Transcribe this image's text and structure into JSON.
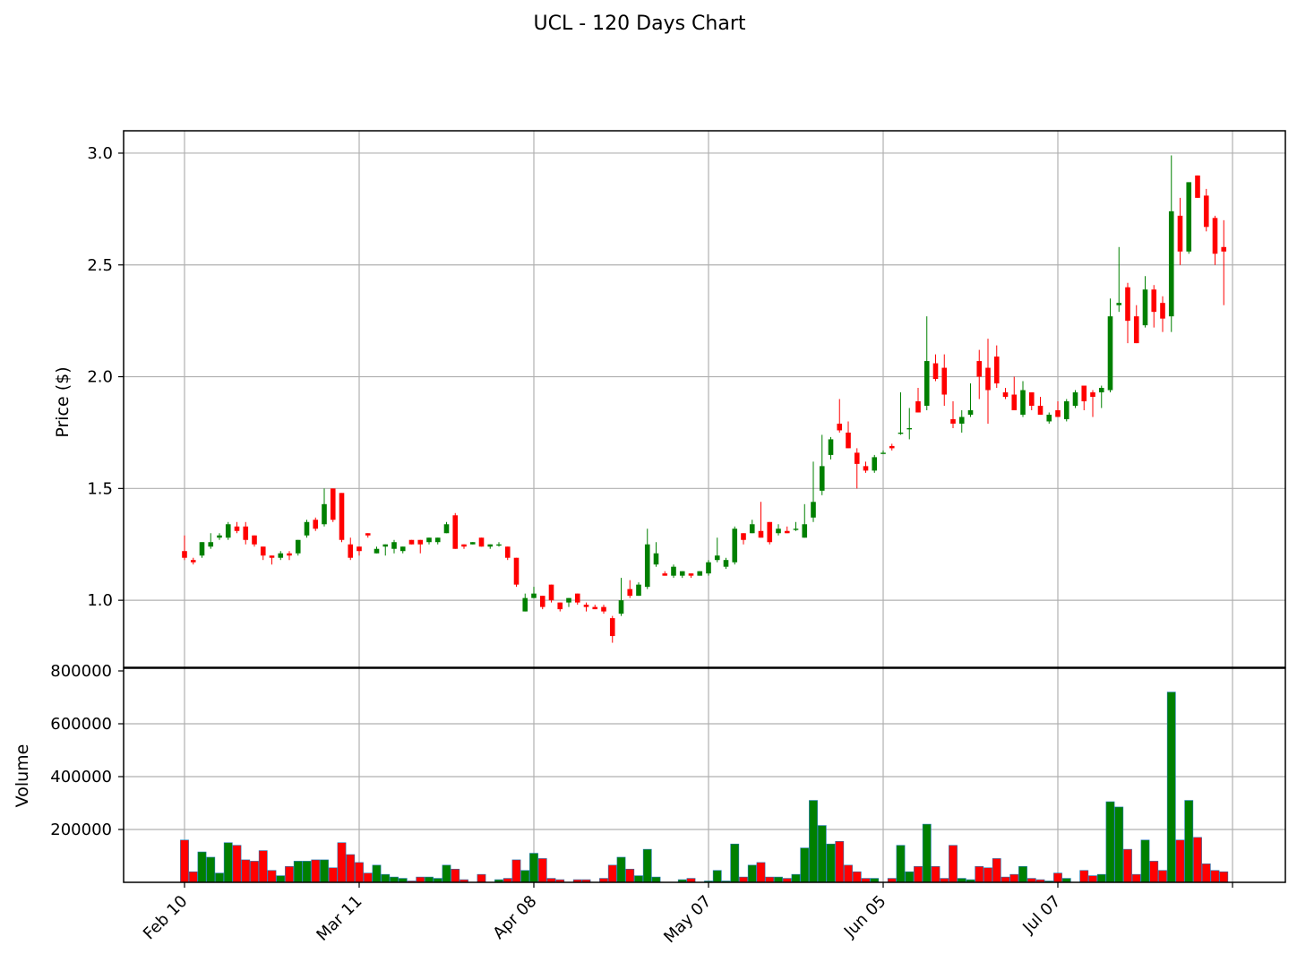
{
  "chart_data": {
    "type": "candlestick",
    "title": "UCL - 120 Days Chart",
    "price_panel": {
      "ylabel": "Price ($)",
      "ylim": [
        0.7,
        3.1
      ],
      "yticks": [
        "1.0",
        "1.5",
        "2.0",
        "2.5",
        "3.0"
      ],
      "ytick_values": [
        1.0,
        1.5,
        2.0,
        2.5,
        3.0
      ],
      "grid": true
    },
    "volume_panel": {
      "ylabel": "Volume",
      "ylim": [
        0,
        800000
      ],
      "yticks": [
        "200000",
        "400000",
        "600000",
        "800000"
      ],
      "ytick_values": [
        200000,
        400000,
        600000,
        800000
      ],
      "grid": true
    },
    "x_axis": {
      "tick_labels": [
        "Feb 10",
        "Mar 11",
        "Apr 08",
        "May 07",
        "Jun 05",
        "Jul 07"
      ],
      "tick_indices": [
        0,
        20,
        40,
        60,
        80,
        100
      ],
      "extra_grid_index": 120
    },
    "up_color": "#008000",
    "down_color": "#ff0000",
    "candles": [
      [
        1.22,
        1.29,
        1.18,
        1.19,
        160000
      ],
      [
        1.18,
        1.19,
        1.16,
        1.17,
        40000
      ],
      [
        1.2,
        1.26,
        1.19,
        1.26,
        115000
      ],
      [
        1.24,
        1.3,
        1.23,
        1.26,
        95000
      ],
      [
        1.28,
        1.3,
        1.27,
        1.29,
        35000
      ],
      [
        1.28,
        1.35,
        1.27,
        1.34,
        150000
      ],
      [
        1.33,
        1.35,
        1.3,
        1.31,
        140000
      ],
      [
        1.33,
        1.35,
        1.25,
        1.27,
        85000
      ],
      [
        1.29,
        1.29,
        1.24,
        1.25,
        80000
      ],
      [
        1.24,
        1.24,
        1.18,
        1.2,
        120000
      ],
      [
        1.2,
        1.2,
        1.16,
        1.19,
        45000
      ],
      [
        1.19,
        1.22,
        1.18,
        1.21,
        25000
      ],
      [
        1.21,
        1.22,
        1.18,
        1.2,
        60000
      ],
      [
        1.21,
        1.27,
        1.2,
        1.27,
        80000
      ],
      [
        1.29,
        1.36,
        1.28,
        1.35,
        80000
      ],
      [
        1.36,
        1.37,
        1.31,
        1.32,
        85000
      ],
      [
        1.34,
        1.5,
        1.33,
        1.43,
        85000
      ],
      [
        1.5,
        1.5,
        1.35,
        1.36,
        55000
      ],
      [
        1.48,
        1.48,
        1.26,
        1.27,
        150000
      ],
      [
        1.25,
        1.28,
        1.18,
        1.19,
        105000
      ],
      [
        1.24,
        1.24,
        1.2,
        1.22,
        75000
      ],
      [
        1.3,
        1.3,
        1.28,
        1.29,
        35000
      ],
      [
        1.21,
        1.24,
        1.21,
        1.23,
        65000
      ],
      [
        1.24,
        1.25,
        1.2,
        1.25,
        30000
      ],
      [
        1.23,
        1.27,
        1.21,
        1.26,
        20000
      ],
      [
        1.22,
        1.24,
        1.21,
        1.24,
        15000
      ],
      [
        1.27,
        1.27,
        1.25,
        1.25,
        5000
      ],
      [
        1.27,
        1.27,
        1.21,
        1.25,
        20000
      ],
      [
        1.26,
        1.28,
        1.25,
        1.28,
        20000
      ],
      [
        1.26,
        1.28,
        1.25,
        1.28,
        15000
      ],
      [
        1.3,
        1.35,
        1.3,
        1.34,
        65000
      ],
      [
        1.38,
        1.39,
        1.23,
        1.23,
        50000
      ],
      [
        1.25,
        1.25,
        1.23,
        1.24,
        10000
      ],
      [
        1.25,
        1.26,
        1.25,
        1.26,
        0
      ],
      [
        1.28,
        1.28,
        1.24,
        1.24,
        30000
      ],
      [
        1.24,
        1.25,
        1.23,
        1.25,
        0
      ],
      [
        1.25,
        1.26,
        1.24,
        1.25,
        10000
      ],
      [
        1.24,
        1.24,
        1.18,
        1.19,
        15000
      ],
      [
        1.19,
        1.19,
        1.06,
        1.07,
        85000
      ],
      [
        0.95,
        1.03,
        0.95,
        1.01,
        45000
      ],
      [
        1.01,
        1.06,
        1.01,
        1.03,
        110000
      ],
      [
        1.02,
        1.02,
        0.96,
        0.97,
        90000
      ],
      [
        1.07,
        1.07,
        0.99,
        1.0,
        15000
      ],
      [
        0.99,
        0.99,
        0.95,
        0.96,
        10000
      ],
      [
        0.99,
        1.01,
        0.97,
        1.01,
        0
      ],
      [
        1.03,
        1.03,
        0.98,
        0.99,
        10000
      ],
      [
        0.98,
        0.99,
        0.95,
        0.97,
        10000
      ],
      [
        0.97,
        0.98,
        0.96,
        0.96,
        0
      ],
      [
        0.97,
        0.98,
        0.94,
        0.95,
        15000
      ],
      [
        0.92,
        0.93,
        0.81,
        0.84,
        65000
      ],
      [
        0.94,
        1.1,
        0.93,
        1.0,
        95000
      ],
      [
        1.05,
        1.09,
        1.01,
        1.02,
        50000
      ],
      [
        1.02,
        1.08,
        1.02,
        1.07,
        25000
      ],
      [
        1.06,
        1.32,
        1.05,
        1.25,
        125000
      ],
      [
        1.16,
        1.26,
        1.15,
        1.21,
        20000
      ],
      [
        1.12,
        1.13,
        1.11,
        1.11,
        0
      ],
      [
        1.11,
        1.16,
        1.1,
        1.15,
        0
      ],
      [
        1.11,
        1.13,
        1.1,
        1.13,
        10000
      ],
      [
        1.12,
        1.12,
        1.1,
        1.11,
        15000
      ],
      [
        1.11,
        1.13,
        1.11,
        1.13,
        0
      ],
      [
        1.12,
        1.18,
        1.11,
        1.17,
        5000
      ],
      [
        1.18,
        1.28,
        1.17,
        1.2,
        45000
      ],
      [
        1.15,
        1.19,
        1.14,
        1.18,
        5000
      ],
      [
        1.17,
        1.33,
        1.16,
        1.32,
        145000
      ],
      [
        1.3,
        1.3,
        1.25,
        1.27,
        20000
      ],
      [
        1.3,
        1.36,
        1.3,
        1.34,
        65000
      ],
      [
        1.31,
        1.44,
        1.28,
        1.28,
        75000
      ],
      [
        1.35,
        1.35,
        1.25,
        1.26,
        20000
      ],
      [
        1.3,
        1.34,
        1.29,
        1.32,
        20000
      ],
      [
        1.31,
        1.33,
        1.3,
        1.3,
        15000
      ],
      [
        1.32,
        1.35,
        1.31,
        1.32,
        30000
      ],
      [
        1.28,
        1.43,
        1.28,
        1.34,
        130000
      ],
      [
        1.37,
        1.62,
        1.35,
        1.44,
        310000
      ],
      [
        1.49,
        1.74,
        1.47,
        1.6,
        215000
      ],
      [
        1.65,
        1.73,
        1.63,
        1.72,
        145000
      ],
      [
        1.79,
        1.9,
        1.75,
        1.76,
        155000
      ],
      [
        1.75,
        1.8,
        1.68,
        1.68,
        65000
      ],
      [
        1.66,
        1.68,
        1.5,
        1.61,
        40000
      ],
      [
        1.6,
        1.62,
        1.57,
        1.58,
        15000
      ],
      [
        1.58,
        1.65,
        1.57,
        1.64,
        15000
      ],
      [
        1.66,
        1.67,
        1.66,
        1.66,
        0
      ],
      [
        1.69,
        1.7,
        1.67,
        1.68,
        15000
      ],
      [
        1.75,
        1.93,
        1.74,
        1.75,
        140000
      ],
      [
        1.77,
        1.86,
        1.72,
        1.77,
        40000
      ],
      [
        1.89,
        1.95,
        1.84,
        1.84,
        60000
      ],
      [
        1.87,
        2.27,
        1.85,
        2.07,
        220000
      ],
      [
        2.06,
        2.1,
        1.98,
        1.99,
        60000
      ],
      [
        2.04,
        2.1,
        1.87,
        1.92,
        15000
      ],
      [
        1.81,
        1.89,
        1.77,
        1.79,
        140000
      ],
      [
        1.79,
        1.85,
        1.75,
        1.82,
        15000
      ],
      [
        1.83,
        1.97,
        1.82,
        1.85,
        10000
      ],
      [
        2.07,
        2.12,
        1.9,
        2.0,
        60000
      ],
      [
        2.04,
        2.17,
        1.79,
        1.94,
        55000
      ],
      [
        2.09,
        2.14,
        1.95,
        1.97,
        90000
      ],
      [
        1.93,
        1.95,
        1.9,
        1.91,
        20000
      ],
      [
        1.92,
        2.0,
        1.85,
        1.85,
        30000
      ],
      [
        1.83,
        1.98,
        1.82,
        1.94,
        60000
      ],
      [
        1.93,
        1.93,
        1.85,
        1.87,
        15000
      ],
      [
        1.87,
        1.91,
        1.83,
        1.83,
        10000
      ],
      [
        1.8,
        1.84,
        1.79,
        1.83,
        5000
      ],
      [
        1.85,
        1.89,
        1.82,
        1.82,
        35000
      ],
      [
        1.81,
        1.9,
        1.8,
        1.89,
        15000
      ],
      [
        1.87,
        1.94,
        1.86,
        1.93,
        0
      ],
      [
        1.96,
        1.96,
        1.85,
        1.89,
        45000
      ],
      [
        1.93,
        1.94,
        1.82,
        1.91,
        25000
      ],
      [
        1.93,
        1.96,
        1.86,
        1.95,
        30000
      ],
      [
        1.94,
        2.35,
        1.93,
        2.27,
        305000
      ],
      [
        2.32,
        2.58,
        2.29,
        2.33,
        285000
      ],
      [
        2.4,
        2.42,
        2.15,
        2.25,
        125000
      ],
      [
        2.27,
        2.32,
        2.15,
        2.15,
        30000
      ],
      [
        2.23,
        2.45,
        2.22,
        2.39,
        160000
      ],
      [
        2.39,
        2.41,
        2.22,
        2.29,
        80000
      ],
      [
        2.33,
        2.36,
        2.2,
        2.26,
        45000
      ],
      [
        2.27,
        2.99,
        2.2,
        2.74,
        720000
      ],
      [
        2.72,
        2.8,
        2.5,
        2.56,
        160000
      ],
      [
        2.56,
        2.87,
        2.55,
        2.87,
        310000
      ],
      [
        2.9,
        2.9,
        2.8,
        2.8,
        170000
      ],
      [
        2.81,
        2.84,
        2.65,
        2.67,
        70000
      ],
      [
        2.71,
        2.72,
        2.5,
        2.55,
        45000
      ],
      [
        2.58,
        2.7,
        2.32,
        2.56,
        40000
      ]
    ]
  }
}
